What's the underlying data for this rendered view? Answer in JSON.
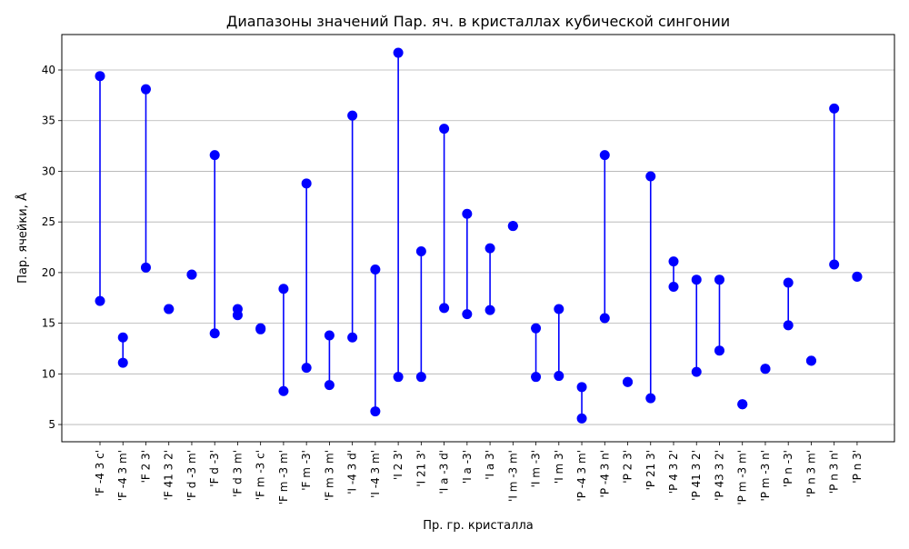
{
  "chart_data": {
    "type": "range",
    "title": "Диапазоны значений Пар. яч. в кристаллах кубической сингонии",
    "xlabel": "Пр. гр. кристалла",
    "ylabel": "Пар. ячейки, Å",
    "ylim": [
      3.3,
      43.5
    ],
    "yticks": [
      5,
      10,
      15,
      20,
      25,
      30,
      35,
      40
    ],
    "grid": "y",
    "color": "#0000ff",
    "categories": [
      "'F -4 3 c'",
      "'F -4 3 m'",
      "'F 2 3'",
      "'F 41 3 2'",
      "'F d -3 m'",
      "'F d -3'",
      "'F d 3 m'",
      "'F m -3 c'",
      "'F m -3 m'",
      "'F m -3'",
      "'F m 3 m'",
      "'I -4 3 d'",
      "'I -4 3 m'",
      "'I 2 3'",
      "'I 21 3'",
      "'I a -3 d'",
      "'I a -3'",
      "'I a 3'",
      "'I m -3 m'",
      "'I m -3'",
      "'I m 3'",
      "'P -4 3 m'",
      "'P -4 3 n'",
      "'P 2 3'",
      "'P 21 3'",
      "'P 4 3 2'",
      "'P 41 3 2'",
      "'P 43 3 2'",
      "'P m -3 m'",
      "'P m -3 n'",
      "'P n -3'",
      "'P n 3 m'",
      "'P n 3 n'",
      "'P n 3'"
    ],
    "min": [
      17.2,
      11.1,
      20.5,
      16.4,
      19.8,
      14.0,
      15.8,
      14.4,
      8.3,
      10.6,
      8.9,
      13.6,
      6.3,
      9.7,
      9.7,
      16.5,
      15.9,
      16.3,
      24.6,
      9.7,
      9.8,
      5.6,
      15.5,
      9.2,
      7.6,
      18.6,
      10.2,
      12.3,
      7.0,
      10.5,
      14.8,
      11.3,
      20.8,
      19.6
    ],
    "max": [
      39.4,
      13.6,
      38.1,
      16.4,
      19.8,
      31.6,
      16.4,
      14.5,
      18.4,
      28.8,
      13.8,
      35.5,
      20.3,
      41.7,
      22.1,
      34.2,
      25.8,
      22.4,
      24.6,
      14.5,
      16.4,
      8.7,
      31.6,
      9.2,
      29.5,
      21.1,
      19.3,
      19.3,
      7.0,
      10.5,
      19.0,
      11.3,
      36.2,
      19.6
    ]
  }
}
